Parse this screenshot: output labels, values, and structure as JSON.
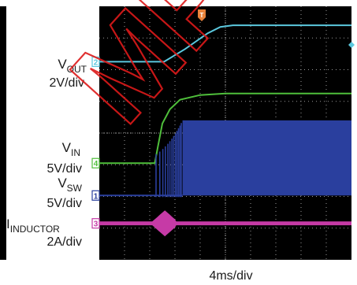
{
  "colors": {
    "background": "#ffffff",
    "plot_background": "#000000",
    "grid": "#9a9a9a",
    "watermark": "#dd1a1a",
    "vout": "#5bc8de",
    "vin": "#4fbf3b",
    "vsw": "#2a3f9e",
    "iinductor": "#c63aa6",
    "text": "#1a1a1a"
  },
  "watermark": {
    "text": "MPS",
    "style": "diagonal-red-outline"
  },
  "trigger_marker": {
    "label": "T"
  },
  "right_edge_marker": {
    "icon": "diamond-marker-icon"
  },
  "time_scale": {
    "label": "4ms/div"
  },
  "chart_data": {
    "type": "line",
    "title": "",
    "xlabel": "4ms/div",
    "x_units": "div",
    "x_range": [
      0,
      10
    ],
    "y_units": "div",
    "y_range": [
      0,
      8
    ],
    "grid": true,
    "legend": "none",
    "series": [
      {
        "key": "vout",
        "label_base": "V",
        "label_sub": "OUT",
        "scale": "2V/div",
        "marker": "2",
        "color": "#5bc8de",
        "x": [
          0,
          2.57,
          3.4,
          4.3,
          4.8,
          5.3,
          10
        ],
        "y": [
          6.25,
          6.25,
          6.65,
          7.15,
          7.35,
          7.4,
          7.4
        ]
      },
      {
        "key": "vin",
        "label_base": "V",
        "label_sub": "IN",
        "scale": "5V/div",
        "marker": "4",
        "color": "#4fbf3b",
        "x": [
          0,
          2.2,
          2.32,
          2.5,
          2.8,
          3.2,
          4.0,
          5.0,
          10
        ],
        "y": [
          3.05,
          3.05,
          3.55,
          4.3,
          4.75,
          5.05,
          5.2,
          5.25,
          5.25
        ]
      },
      {
        "key": "vsw",
        "label_base": "V",
        "label_sub": "SW",
        "scale": "5V/div",
        "marker": "1",
        "color": "#2a3f9e",
        "baseline": 2.03,
        "switching_start": 2.25,
        "burst_end": 3.3,
        "high_level": 4.4
      },
      {
        "key": "iinductor",
        "label_base": "I",
        "label_sub": "INDUCTOR",
        "scale": "2A/div",
        "marker": "3",
        "color": "#c63aa6",
        "baseline": 1.15,
        "inrush_start": 2.1,
        "inrush_peak_x": 2.6,
        "inrush_end": 3.0,
        "inrush_amplitude": 0.35,
        "ripple_amplitude": 0.06
      }
    ]
  }
}
